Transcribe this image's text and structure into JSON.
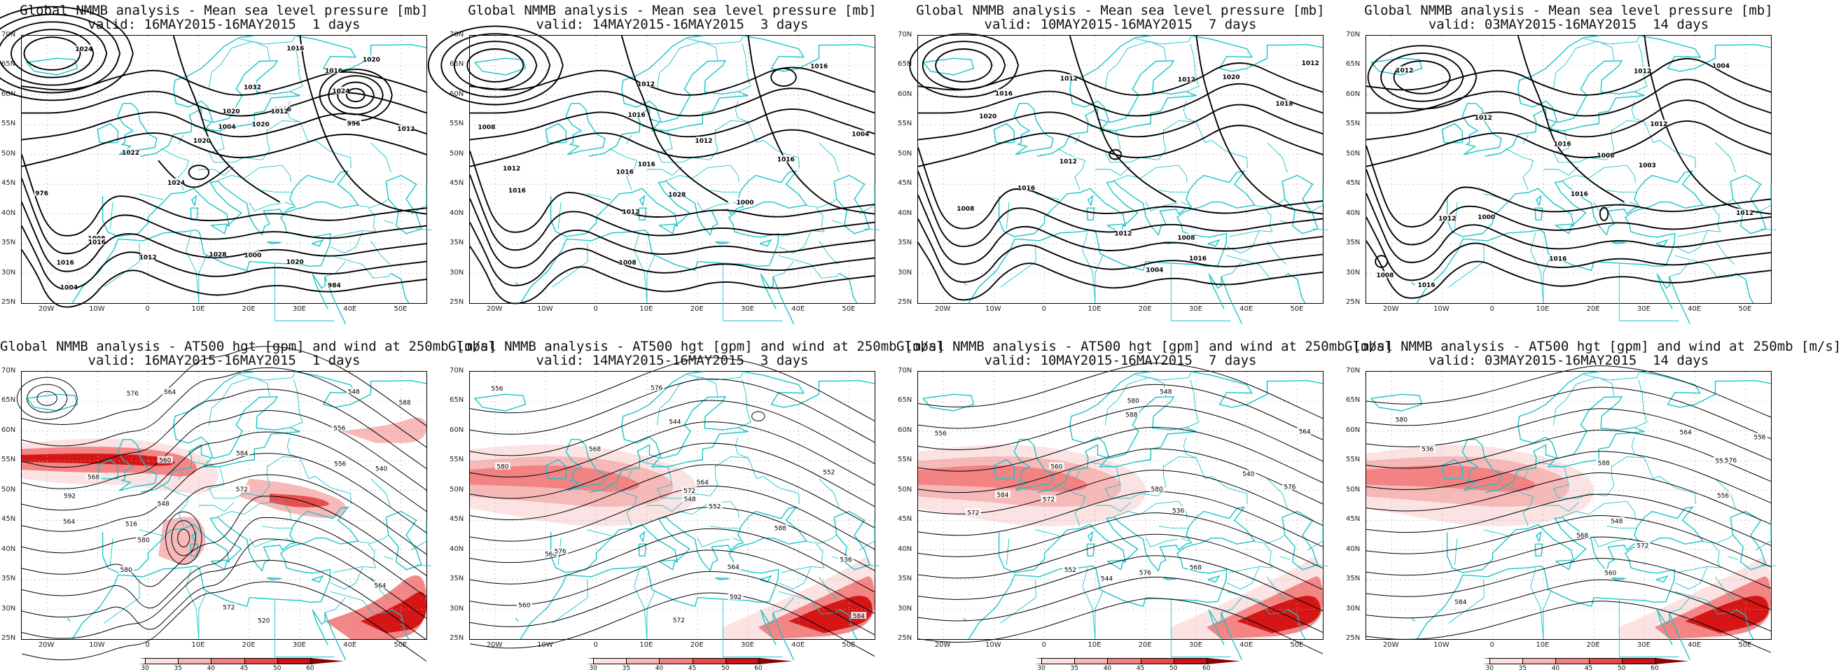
{
  "colors": {
    "coast": "#18c4c8",
    "contour": "#000000",
    "grid": "#b5b5b5"
  },
  "lat_labels": [
    "70N",
    "65N",
    "60N",
    "55N",
    "50N",
    "45N",
    "40N",
    "35N",
    "30N",
    "25N"
  ],
  "lon_labels": [
    "20W",
    "10W",
    "0",
    "10E",
    "20E",
    "30E",
    "40E",
    "50E"
  ],
  "wind_colorbar": {
    "labels": [
      "30",
      "35",
      "40",
      "45",
      "50",
      "60"
    ],
    "colors": [
      "#ffffff",
      "#fce1e1",
      "#f7b5b5",
      "#f28080",
      "#e84848",
      "#d21010",
      "#8b0000"
    ]
  },
  "panels": [
    {
      "id": "mslp-1",
      "title1": "Global NMMB analysis - Mean sea level pressure [mb]",
      "title2": "valid: 16MAY2015-16MAY2015  1 days",
      "labels": [
        "1004",
        "1000",
        "1008",
        "1012",
        "976",
        "984",
        "1004",
        "996",
        "1016",
        "1024",
        "1022",
        "1020",
        "1016",
        "1032",
        "1028",
        "1024",
        "1020",
        "1016",
        "1012",
        "1020",
        "1020",
        "1016",
        "1020",
        "1024",
        "1016",
        "1012"
      ]
    },
    {
      "id": "mslp-3",
      "title1": "Global NMMB analysis - Mean sea level pressure [mb]",
      "title2": "valid: 14MAY2015-16MAY2015  3 days",
      "labels": [
        "1008",
        "1012",
        "1016",
        "1000",
        "1004",
        "1008",
        "1012",
        "1016",
        "1016",
        "1016",
        "1016",
        "1028",
        "1016",
        "1012",
        "1012"
      ]
    },
    {
      "id": "mslp-7",
      "title1": "Global NMMB analysis - Mean sea level pressure [mb]",
      "title2": "valid: 10MAY2015-16MAY2015  7 days",
      "labels": [
        "1008",
        "1004",
        "1012",
        "1016",
        "1020",
        "1012",
        "1008",
        "1020",
        "1016",
        "1016",
        "1012",
        "1018",
        "1012",
        "1012"
      ]
    },
    {
      "id": "mslp-14",
      "title1": "Global NMMB analysis - Mean sea level pressure [mb]",
      "title2": "valid: 03MAY2015-16MAY2015  14 days",
      "labels": [
        "1012",
        "1008",
        "1003",
        "1000",
        "1004",
        "1008",
        "1012",
        "1016",
        "1016",
        "1016",
        "1012",
        "1012",
        "1016",
        "1012",
        "1012"
      ]
    },
    {
      "id": "z500-1",
      "title1": "Global NMMB analysis - AT500 hgt [gpm] and wind at 250mb [m/s]",
      "title2": "valid: 16MAY2015-16MAY2015  1 days",
      "labels": [
        "516",
        "520",
        "548",
        "556",
        "564",
        "572",
        "580",
        "584",
        "588",
        "592",
        "540",
        "548",
        "556",
        "564",
        "572",
        "576",
        "580",
        "564",
        "560",
        "568"
      ]
    },
    {
      "id": "z500-3",
      "title1": "Global NMMB analysis - AT500 hgt [gpm] and wind at 250mb [m/s]",
      "title2": "valid: 14MAY2015-16MAY2015  3 days",
      "labels": [
        "548",
        "552",
        "556",
        "560",
        "564",
        "572",
        "576",
        "584",
        "592",
        "536",
        "544",
        "552",
        "560",
        "564",
        "568",
        "572",
        "576",
        "580",
        "588"
      ]
    },
    {
      "id": "z500-7",
      "title1": "Global NMMB analysis - AT500 hgt [gpm] and wind at 250mb [m/s]",
      "title2": "valid: 10MAY2015-16MAY2015  7 days",
      "labels": [
        "540",
        "548",
        "556",
        "564",
        "572",
        "576",
        "580",
        "584",
        "588",
        "536",
        "544",
        "552",
        "560",
        "568",
        "572",
        "576",
        "580"
      ]
    },
    {
      "id": "z500-14",
      "title1": "Global NMMB analysis - AT500 hgt [gpm] and wind at 250mb [m/s]",
      "title2": "valid: 03MAY2015-16MAY2015  14 days",
      "labels": [
        "536",
        "548",
        "552",
        "556",
        "560",
        "564",
        "568",
        "572",
        "576",
        "580",
        "584",
        "588",
        "556"
      ]
    }
  ]
}
